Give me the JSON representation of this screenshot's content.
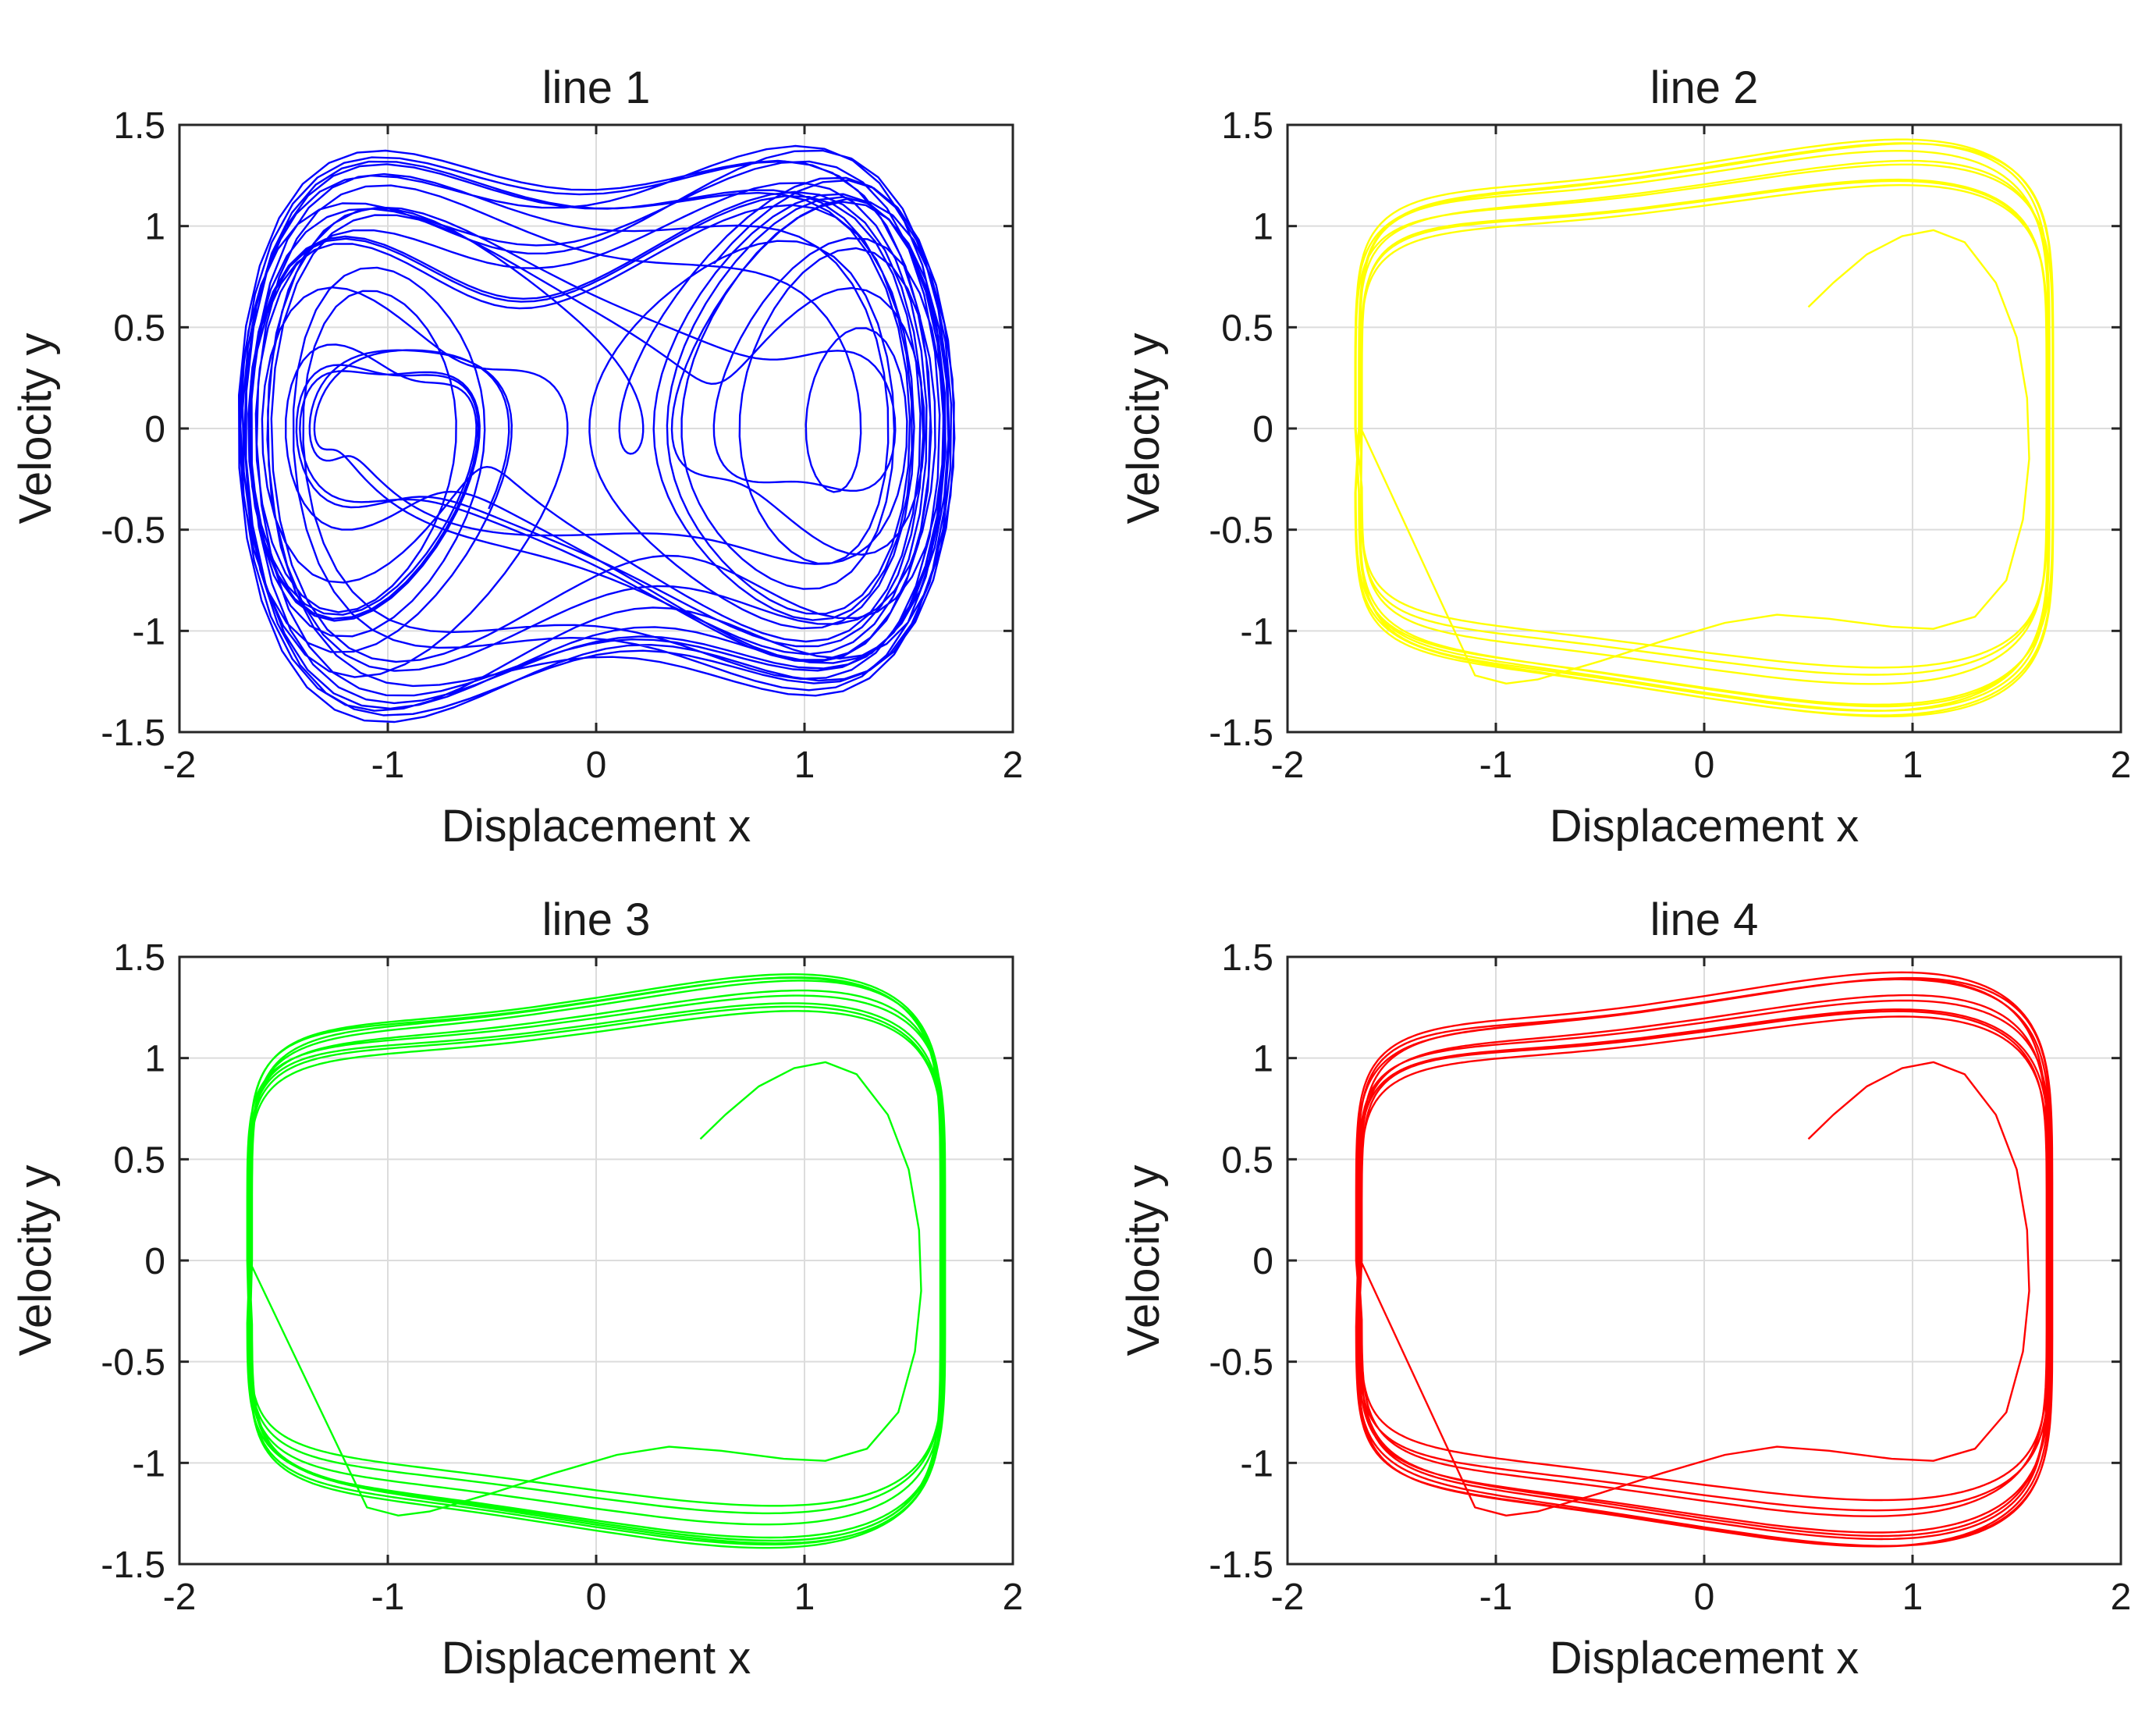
{
  "figure": {
    "layout": "2x2 grid of phase portraits"
  },
  "chart_data": [
    {
      "type": "line",
      "title": "line 1",
      "xlabel": "Displacement x",
      "ylabel": "Velocity y",
      "xlim": [
        -2,
        2
      ],
      "ylim": [
        -1.5,
        1.5
      ],
      "xticks": [
        -2,
        -1,
        0,
        1,
        2
      ],
      "yticks": [
        -1.5,
        -1,
        -0.5,
        0,
        0.5,
        1,
        1.5
      ],
      "xtick_labels": [
        "-2",
        "-1",
        "0",
        "1",
        "2"
      ],
      "ytick_labels": [
        "-1.5",
        "-1",
        "-0.5",
        "0",
        "0.5",
        "1",
        "1.5"
      ],
      "grid": true,
      "color": "#0000ff",
      "series": [
        {
          "name": "line 1",
          "description": "chaotic trajectory of a forced Duffing-type oscillator starting near (0.5, 0.6)",
          "start": [
            0.5,
            0.6
          ],
          "x_range": [
            -1.75,
            1.72
          ],
          "y_range": [
            -1.45,
            1.45
          ]
        }
      ]
    },
    {
      "type": "line",
      "title": "line 2",
      "xlabel": "Displacement x",
      "ylabel": "Velocity y",
      "xlim": [
        -2,
        2
      ],
      "ylim": [
        -1.5,
        1.5
      ],
      "xticks": [
        -2,
        -1,
        0,
        1,
        2
      ],
      "yticks": [
        -1.5,
        -1,
        -0.5,
        0,
        0.5,
        1,
        1.5
      ],
      "xtick_labels": [
        "-2",
        "-1",
        "0",
        "1",
        "2"
      ],
      "ytick_labels": [
        "-1.5",
        "-1",
        "-0.5",
        "0",
        "0.5",
        "1",
        "1.5"
      ],
      "grid": true,
      "color": "#ffff00",
      "series": [
        {
          "name": "line 2",
          "description": "trajectory converging to a large limit cycle, starting near (0.5, 0.6)",
          "start": [
            0.5,
            0.6
          ],
          "x_range": [
            -1.75,
            1.72
          ],
          "y_range": [
            -1.45,
            1.45
          ]
        }
      ]
    },
    {
      "type": "line",
      "title": "line 3",
      "xlabel": "Displacement x",
      "ylabel": "Velocity y",
      "xlim": [
        -2,
        2
      ],
      "ylim": [
        -1.5,
        1.5
      ],
      "xticks": [
        -2,
        -1,
        0,
        1,
        2
      ],
      "yticks": [
        -1.5,
        -1,
        -0.5,
        0,
        0.5,
        1,
        1.5
      ],
      "xtick_labels": [
        "-2",
        "-1",
        "0",
        "1",
        "2"
      ],
      "ytick_labels": [
        "-1.5",
        "-1",
        "-0.5",
        "0",
        "0.5",
        "1",
        "1.5"
      ],
      "grid": true,
      "color": "#00ff00",
      "series": [
        {
          "name": "line 3",
          "description": "trajectory converging to a large limit cycle, starting near (0.5, 0.6)",
          "start": [
            0.5,
            0.6
          ],
          "x_range": [
            -1.75,
            1.72
          ],
          "y_range": [
            -1.45,
            1.45
          ]
        }
      ]
    },
    {
      "type": "line",
      "title": "line 4",
      "xlabel": "Displacement x",
      "ylabel": "Velocity y",
      "xlim": [
        -2,
        2
      ],
      "ylim": [
        -1.5,
        1.5
      ],
      "xticks": [
        -2,
        -1,
        0,
        1,
        2
      ],
      "yticks": [
        -1.5,
        -1,
        -0.5,
        0,
        0.5,
        1,
        1.5
      ],
      "xtick_labels": [
        "-2",
        "-1",
        "0",
        "1",
        "2"
      ],
      "ytick_labels": [
        "-1.5",
        "-1",
        "-0.5",
        "0",
        "0.5",
        "1",
        "1.5"
      ],
      "grid": true,
      "color": "#ff0000",
      "series": [
        {
          "name": "line 4",
          "description": "trajectory converging to a large limit cycle, starting near (0.5, 0.6)",
          "start": [
            0.5,
            0.6
          ],
          "x_range": [
            -1.75,
            1.72
          ],
          "y_range": [
            -1.45,
            1.45
          ]
        }
      ]
    }
  ]
}
